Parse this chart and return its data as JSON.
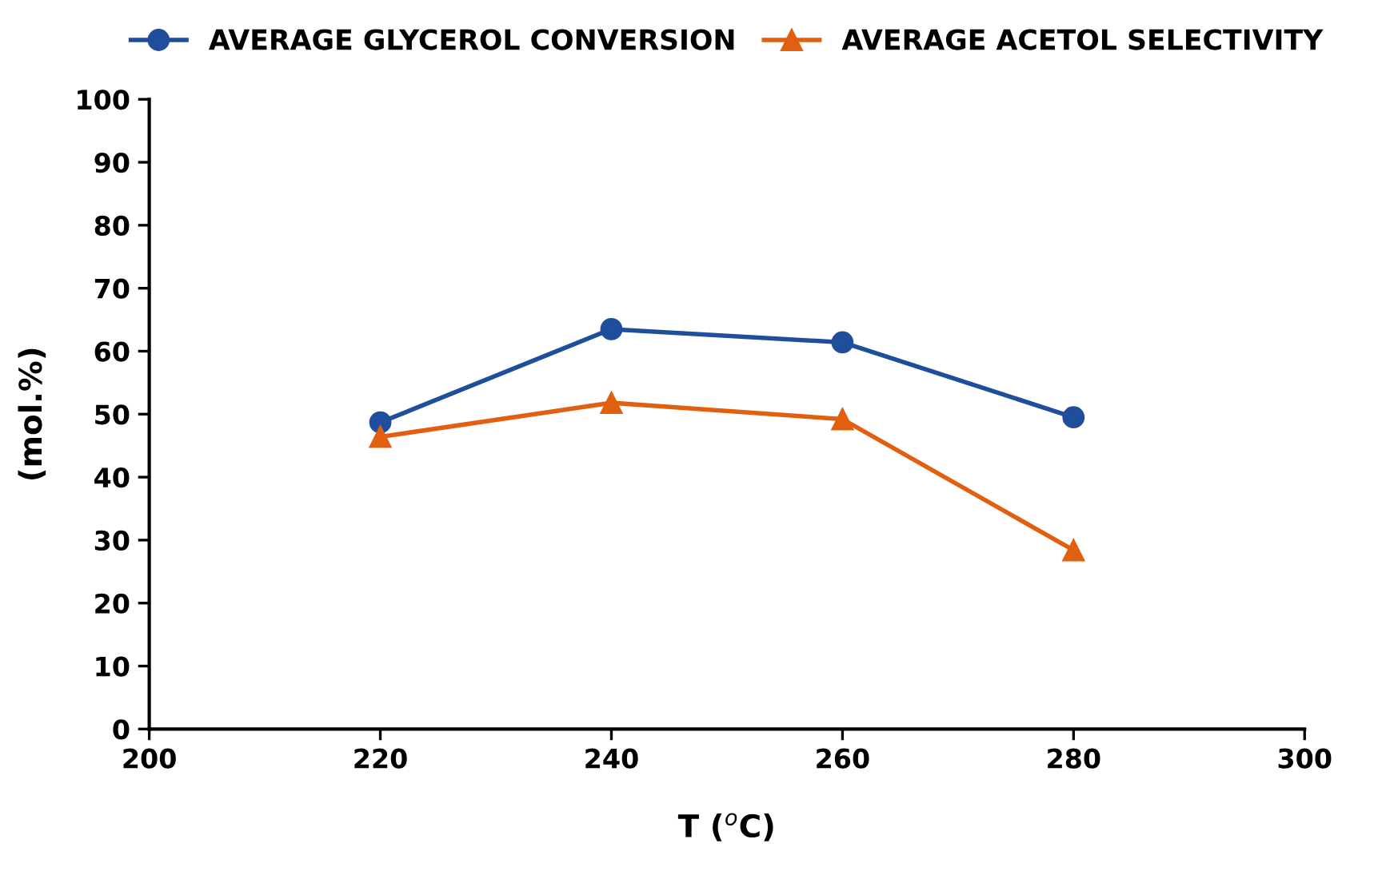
{
  "chart_data": {
    "type": "line",
    "xlabel": "T ($^{o}$C)",
    "ylabel": "(mol.%)",
    "x": [
      220,
      240,
      260,
      280
    ],
    "series": [
      {
        "name": "AVERAGE GLYCEROL CONVERSION",
        "color": "#1f4e9c",
        "marker": "circle",
        "values": [
          48.7,
          63.5,
          61.4,
          49.5
        ]
      },
      {
        "name": "AVERAGE ACETOL SELECTIVITY",
        "color": "#e06010",
        "marker": "triangle",
        "values": [
          46.4,
          51.8,
          49.2,
          28.4
        ]
      }
    ],
    "xlim": [
      200,
      300
    ],
    "xticks": [
      200,
      220,
      240,
      260,
      280,
      300
    ],
    "ylim": [
      0,
      100
    ],
    "yticks": [
      0,
      10,
      20,
      30,
      40,
      50,
      60,
      70,
      80,
      90,
      100
    ],
    "grid": false,
    "legend": "top",
    "line_style": "solid"
  }
}
